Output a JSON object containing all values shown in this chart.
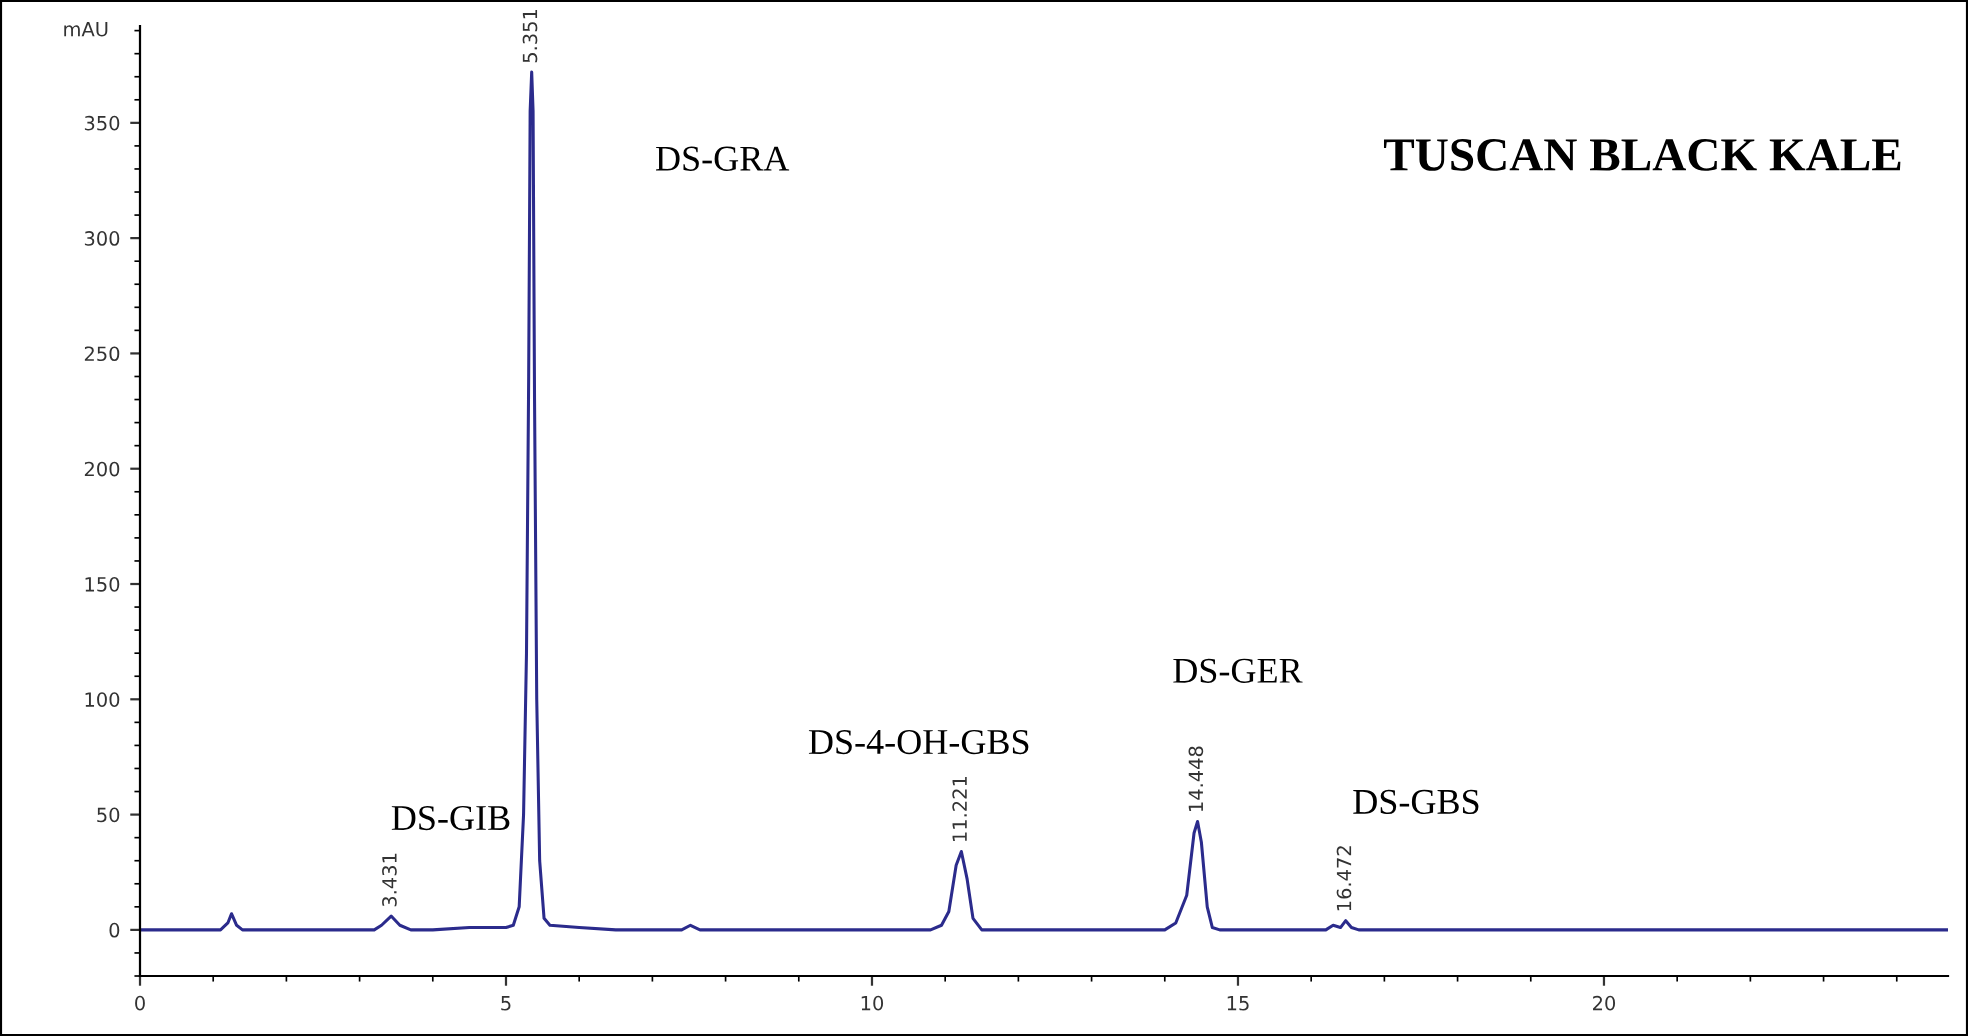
{
  "chart_data": {
    "type": "line",
    "title": "TUSCAN BLACK KALE",
    "ylabel": "mAU",
    "x": [
      0,
      1.1,
      1.2,
      1.25,
      1.32,
      1.4,
      3.2,
      3.3,
      3.431,
      3.55,
      3.7,
      4.0,
      4.5,
      4.7,
      4.9,
      5.0,
      5.1,
      5.18,
      5.24,
      5.28,
      5.31,
      5.33,
      5.351,
      5.37,
      5.39,
      5.42,
      5.46,
      5.52,
      5.6,
      6.0,
      6.5,
      7.4,
      7.52,
      7.65,
      10.8,
      10.95,
      11.05,
      11.15,
      11.221,
      11.3,
      11.38,
      11.5,
      14.0,
      14.15,
      14.3,
      14.4,
      14.448,
      14.5,
      14.58,
      14.65,
      14.75,
      16.2,
      16.3,
      16.4,
      16.472,
      16.55,
      16.65,
      24.7
    ],
    "series": [
      {
        "color": "#2b2b8c",
        "values": [
          0,
          0,
          3,
          7,
          2,
          0,
          0,
          2,
          6,
          2,
          0,
          0,
          1,
          1,
          1,
          1,
          2,
          10,
          50,
          120,
          240,
          355,
          372,
          355,
          230,
          100,
          30,
          5,
          2,
          1,
          0,
          0,
          2,
          0,
          0,
          2,
          8,
          28,
          34,
          22,
          5,
          0,
          0,
          3,
          15,
          42,
          47,
          38,
          10,
          1,
          0,
          0,
          2,
          1,
          4,
          1,
          0,
          0
        ]
      }
    ],
    "xlim": [
      0,
      24.7
    ],
    "xticks": [
      0,
      5,
      10,
      15,
      20
    ],
    "ylim": [
      -20,
      392
    ],
    "yticks": [
      0,
      50,
      100,
      150,
      200,
      250,
      300,
      350
    ],
    "grid": false,
    "legend": false,
    "marker": "none",
    "line_style": "solid",
    "annotations": [
      {
        "text": "3.431",
        "x": 3.431,
        "y": 6
      },
      {
        "text": "5.351",
        "x": 5.351,
        "y": 372
      },
      {
        "text": "11.221",
        "x": 11.221,
        "y": 34
      },
      {
        "text": "14.448",
        "x": 14.448,
        "y": 47
      },
      {
        "text": "16.472",
        "x": 16.472,
        "y": 4
      },
      "DS-GRA",
      "DS-GIB",
      "DS-4-OH-GBS",
      "DS-GER",
      "DS-GBS"
    ]
  }
}
